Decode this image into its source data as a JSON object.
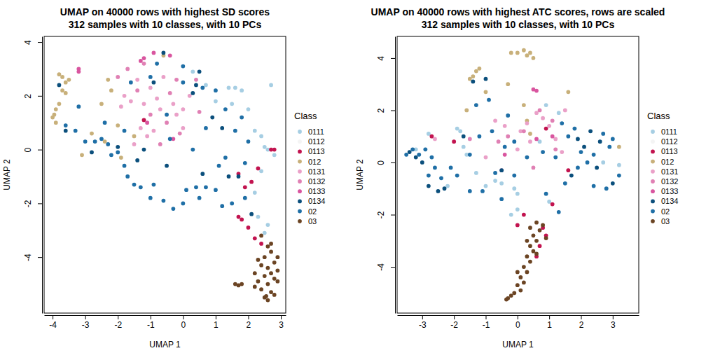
{
  "chart_data": [
    {
      "type": "scatter",
      "title": "UMAP on 40000 rows with highest SD scores",
      "subtitle": "312 samples with 10 classes, with 10 PCs",
      "x_label": "UMAP 1",
      "y_label": "UMAP 2",
      "legend_title": "Class",
      "legend": "right",
      "xlim": [
        -4.26,
        3.15
      ],
      "ylim": [
        -6.08,
        4.21
      ],
      "xticks": [
        -4,
        -3,
        -2,
        -1,
        0,
        1,
        2,
        3
      ],
      "yticks": [
        -4,
        -2,
        0,
        2,
        4
      ],
      "series": [
        {
          "name": "0111",
          "color": "#a6cee3",
          "marker": "circle",
          "x": [
            1.4,
            1.6,
            1.8,
            0.3,
            2.0,
            2.2,
            2.4,
            2.5,
            2.6,
            2.4,
            2.2,
            2.3,
            2.6,
            2.5,
            2.7,
            1.0,
            1.5,
            2.8,
            0.7
          ],
          "y": [
            2.3,
            2.3,
            2.2,
            2.9,
            1.5,
            0.7,
            0.5,
            0.1,
            0.0,
            -0.8,
            -1.6,
            -2.5,
            -2.8,
            -3.1,
            2.4,
            1.8,
            1.7,
            -0.2,
            2.4
          ]
        },
        {
          "name": "0112",
          "color": "#f4f4f4",
          "marker": "circle",
          "x": [],
          "y": []
        },
        {
          "name": "0113",
          "color": "#c2134f",
          "marker": "circle",
          "x": [
            2.8,
            1.7,
            2.3,
            2.1,
            1.9,
            1.7,
            1.8,
            2.0,
            2.2,
            2.4,
            -1.2,
            2.7
          ],
          "y": [
            0.0,
            -0.9,
            -0.7,
            -1.2,
            -1.4,
            -2.5,
            -2.6,
            -2.9,
            -3.3,
            -3.5,
            1.1,
            0.0
          ]
        },
        {
          "name": "012",
          "color": "#c8b07a",
          "marker": "circle",
          "x": [
            -4.0,
            -3.9,
            -3.8,
            -3.95,
            -3.7,
            -3.6,
            -3.7,
            -3.5,
            -3.8,
            -3.6,
            -3.9,
            -2.3,
            -2.2,
            -2.5,
            -2.0,
            -1.9,
            -2.4,
            -3.1,
            -1.5,
            -0.6,
            -2.8
          ],
          "y": [
            1.2,
            1.5,
            1.7,
            1.3,
            2.2,
            2.5,
            2.7,
            2.6,
            2.8,
            2.1,
            1.0,
            2.6,
            2.2,
            1.7,
            0.9,
            -0.3,
            0.3,
            -0.2,
            0.5,
            3.5,
            0.6
          ]
        },
        {
          "name": "0131",
          "color": "#eaa0c8",
          "marker": "circle",
          "x": [
            -1.8,
            -1.6,
            -1.4,
            -1.0,
            -0.8,
            -1.3,
            -1.1,
            -0.7,
            -0.3,
            -0.2,
            0.0,
            -1.5,
            -0.9,
            -0.6,
            0.2,
            -1.9,
            -1.2,
            0.0
          ],
          "y": [
            2.0,
            1.8,
            2.6,
            2.3,
            1.9,
            0.8,
            0.5,
            1.5,
            1.7,
            1.3,
            1.5,
            0.2,
            0.7,
            2.7,
            2.0,
            1.6,
            1.7,
            0.8
          ]
        },
        {
          "name": "0132",
          "color": "#e080b4",
          "marker": "circle",
          "x": [
            -2.0,
            -1.7,
            -1.2,
            -0.4,
            -0.2,
            0.4,
            -1.0,
            -0.5,
            -1.4,
            -0.1,
            0.5,
            -0.7
          ],
          "y": [
            2.7,
            3.0,
            3.2,
            2.1,
            2.6,
            2.6,
            1.3,
            1.0,
            2.2,
            0.6,
            1.4,
            0.2
          ]
        },
        {
          "name": "0133",
          "color": "#d9559f",
          "marker": "circle",
          "x": [
            -3.2,
            -3.2,
            -1.3,
            -1.2,
            -0.9,
            -1.1,
            -0.4,
            -0.3
          ],
          "y": [
            3.0,
            2.9,
            3.3,
            3.4,
            3.6,
            1.0,
            3.5,
            0.4
          ]
        },
        {
          "name": "0134",
          "color": "#0b4f7c",
          "marker": "circle",
          "x": [
            -0.6,
            0.5,
            0.4,
            -0.9,
            -1.2,
            -1.4,
            -2.0,
            -2.8,
            1.2,
            0.9,
            -0.5,
            2.1,
            1.7,
            -3.6,
            -3.8,
            1.4,
            0.6,
            0.3
          ],
          "y": [
            3.6,
            2.9,
            2.4,
            2.5,
            0.0,
            -0.4,
            0.1,
            -0.1,
            0.8,
            1.2,
            -0.6,
            -2.4,
            -1.0,
            0.7,
            2.4,
            -1.0,
            -0.9,
            2.1
          ]
        },
        {
          "name": "02",
          "color": "#1f6fa6",
          "marker": "circle",
          "x": [
            -3.6,
            -3.3,
            -3.0,
            -3.2,
            -2.7,
            -2.5,
            -2.3,
            -2.0,
            -1.8,
            -1.7,
            -1.5,
            -1.3,
            -0.9,
            -0.6,
            -0.3,
            0.0,
            0.1,
            0.4,
            0.7,
            1.0,
            1.2,
            1.5,
            1.3,
            1.6,
            1.8,
            1.3,
            1.0,
            0.6,
            0.0,
            -0.5,
            -1.8,
            -0.4,
            0.3,
            -1.0,
            1.9,
            2.0,
            1.1,
            0.7,
            -2.2,
            -1.6,
            -1.0,
            0.0,
            -0.8,
            -2.4,
            1.9,
            0.5
          ],
          "y": [
            0.9,
            0.7,
            0.3,
            1.6,
            0.3,
            0.4,
            0.2,
            -0.1,
            -0.6,
            -1.0,
            -1.3,
            -1.4,
            -1.3,
            -1.9,
            -2.2,
            -2.0,
            -1.5,
            -1.4,
            -1.4,
            -1.5,
            -2.1,
            -2.0,
            -0.3,
            0.7,
            1.2,
            1.5,
            2.2,
            2.3,
            2.5,
            1.3,
            0.7,
            0.4,
            0.0,
            -1.8,
            -1.8,
            0.3,
            -0.6,
            0.8,
            -0.2,
            2.5,
            2.7,
            3.1,
            3.2,
            1.0,
            -0.5,
            -1.8
          ]
        },
        {
          "name": "03",
          "color": "#6b4423",
          "marker": "circle",
          "x": [
            2.6,
            2.7,
            2.5,
            2.3,
            2.8,
            2.4,
            2.6,
            2.9,
            2.7,
            2.5,
            2.8,
            2.3,
            2.6,
            2.9,
            2.4,
            2.7,
            2.5,
            2.6,
            2.8,
            2.2,
            1.6,
            1.7,
            1.8,
            2.4,
            2.7,
            2.9,
            2.2,
            2.55
          ],
          "y": [
            -3.6,
            -3.8,
            -4.0,
            -4.1,
            -4.2,
            -4.3,
            -4.4,
            -4.5,
            -4.6,
            -4.7,
            -4.8,
            -4.9,
            -5.0,
            -4.9,
            -5.2,
            -5.3,
            -5.5,
            -5.6,
            -5.4,
            -5.1,
            -5.0,
            -5.05,
            -5.0,
            -3.2,
            -3.5,
            -4.0,
            -4.6,
            -5.45
          ]
        }
      ]
    },
    {
      "type": "scatter",
      "title": "UMAP on 40000 rows with highest ATC scores, rows are scaled",
      "subtitle": "312 samples with 10 classes, with 10 PCs",
      "x_label": "UMAP 1",
      "y_label": "UMAP 2",
      "legend_title": "Class",
      "legend": "right",
      "xlim": [
        -3.79,
        3.82
      ],
      "ylim": [
        -5.77,
        4.83
      ],
      "xticks": [
        -3,
        -2,
        -1,
        0,
        1,
        2,
        3
      ],
      "yticks": [
        -4,
        -2,
        0,
        2,
        4
      ],
      "series": [
        {
          "name": "0111",
          "color": "#a6cee3",
          "marker": "circle",
          "x": [
            -2.8,
            -1.9,
            -1.8,
            -1.7,
            -1.6,
            -2.2,
            -1.0,
            -0.5,
            -0.1,
            0.0,
            0.0,
            -0.2,
            0.7,
            0.9,
            1.3,
            2.7,
            3.2,
            -3.2,
            -1.3,
            1.0,
            -0.7
          ],
          "y": [
            1.1,
            1.3,
            1.2,
            0.6,
            0.3,
            -0.9,
            -0.9,
            -0.8,
            -1.0,
            -1.2,
            -1.8,
            -2.0,
            0.8,
            2.2,
            1.9,
            0.0,
            -0.1,
            0.5,
            -0.4,
            -1.5,
            -0.7
          ]
        },
        {
          "name": "0112",
          "color": "#f4f4f4",
          "marker": "circle",
          "x": [],
          "y": []
        },
        {
          "name": "0113",
          "color": "#c2134f",
          "marker": "circle",
          "x": [
            0.8,
            0.9,
            0.7,
            0.6,
            0.0,
            1.1,
            1.6,
            -2.7,
            -2.0,
            0.9,
            0.2
          ],
          "y": [
            -2.5,
            -2.8,
            -3.2,
            -3.6,
            -2.4,
            -1.6,
            -0.3,
            1.0,
            0.8,
            1.3,
            -2.0
          ]
        },
        {
          "name": "012",
          "color": "#c8b07a",
          "marker": "circle",
          "x": [
            0.0,
            0.2,
            0.4,
            0.5,
            0.3,
            -0.2,
            -1.4,
            -1.3,
            -1.2,
            -1.5,
            -0.3,
            0.2,
            0.3,
            0.4,
            -1.6,
            3.2,
            1.6,
            -1.0
          ],
          "y": [
            4.2,
            4.3,
            4.2,
            4.0,
            4.1,
            4.2,
            3.3,
            3.5,
            3.6,
            3.2,
            3.0,
            2.2,
            1.6,
            1.1,
            2.0,
            0.6,
            2.7,
            2.7
          ]
        },
        {
          "name": "0131",
          "color": "#eaa0c8",
          "marker": "circle",
          "x": [
            -0.7,
            -0.4,
            0.1,
            0.3,
            0.6,
            0.8,
            1.0,
            1.2,
            -0.5,
            0.0,
            1.4,
            -1.0,
            -2.6,
            1.5,
            0.4
          ],
          "y": [
            1.6,
            1.4,
            1.2,
            1.5,
            1.9,
            1.7,
            1.4,
            0.9,
            -0.3,
            0.5,
            0.4,
            0.2,
            0.9,
            2.0,
            0.8
          ]
        },
        {
          "name": "0132",
          "color": "#e080b4",
          "marker": "circle",
          "x": [
            0.2,
            -0.6,
            0.7,
            1.1,
            -0.3,
            1.2,
            -1.5,
            0.5
          ],
          "y": [
            1.2,
            0.8,
            2.0,
            1.6,
            1.0,
            0.5,
            0.9,
            -0.2
          ]
        },
        {
          "name": "0133",
          "color": "#d9559f",
          "marker": "circle",
          "x": [
            0.5,
            0.6,
            0.6,
            1.1,
            -0.4
          ],
          "y": [
            2.8,
            2.75,
            0.9,
            1.0,
            0.3
          ]
        },
        {
          "name": "0134",
          "color": "#0b4f7c",
          "marker": "circle",
          "x": [
            -1.4,
            -1.0,
            -3.4,
            -3.2,
            -3.0,
            -2.8,
            -2.5,
            -2.3,
            -0.5,
            1.9,
            2.1,
            2.3,
            2.6,
            3.0,
            2.5,
            -1.7,
            1.7
          ],
          "y": [
            3.1,
            3.2,
            0.4,
            0.2,
            0.0,
            -0.9,
            -1.1,
            -1.0,
            -0.3,
            0.9,
            0.6,
            1.2,
            0.8,
            -0.8,
            -0.2,
            1.0,
            -0.5
          ]
        },
        {
          "name": "02",
          "color": "#1f6fa6",
          "marker": "circle",
          "x": [
            -3.5,
            -3.3,
            -3.1,
            -2.9,
            -2.7,
            -2.6,
            -2.8,
            -2.4,
            -2.1,
            -1.9,
            -1.5,
            -1.1,
            -0.7,
            -0.4,
            -0.1,
            -0.5,
            -0.3,
            -0.8,
            -1.2,
            -1.3,
            -0.9,
            1.4,
            1.6,
            1.8,
            2.0,
            2.2,
            2.4,
            2.7,
            3.0,
            3.2,
            2.8,
            2.4,
            1.9,
            1.5,
            1.2,
            0.8,
            0.3,
            0.9,
            1.3,
            -1.5,
            -0.1,
            2.9
          ],
          "y": [
            0.3,
            0.5,
            0.3,
            0.5,
            0.2,
            -0.2,
            -0.5,
            -0.6,
            -0.2,
            -0.5,
            -1.1,
            -1.1,
            -0.4,
            0.6,
            0.8,
            -1.4,
            1.8,
            1.2,
            1.0,
            2.2,
            2.4,
            1.5,
            1.0,
            1.3,
            0.4,
            0.0,
            0.3,
            1.1,
            0.9,
            -0.5,
            -1.0,
            -0.9,
            -0.2,
            -0.8,
            0.2,
            0.4,
            0.2,
            -1.2,
            -1.9,
            0.3,
            -0.5,
            0.6
          ]
        },
        {
          "name": "03",
          "color": "#6b4423",
          "marker": "circle",
          "x": [
            0.6,
            0.4,
            0.7,
            0.5,
            0.6,
            0.4,
            0.5,
            0.3,
            0.4,
            0.2,
            0.3,
            0.1,
            0.2,
            0.0,
            0.1,
            -0.1,
            -0.2,
            -0.3,
            -0.35,
            0.8,
            0.9,
            0.6,
            0.3,
            0.0
          ],
          "y": [
            -2.3,
            -2.5,
            -2.6,
            -2.8,
            -3.0,
            -3.2,
            -3.4,
            -3.6,
            -3.8,
            -4.0,
            -4.2,
            -4.4,
            -4.6,
            -4.7,
            -4.9,
            -5.0,
            -5.1,
            -5.2,
            -5.25,
            -2.4,
            -2.9,
            -3.5,
            -3.0,
            -4.2
          ]
        }
      ]
    }
  ]
}
